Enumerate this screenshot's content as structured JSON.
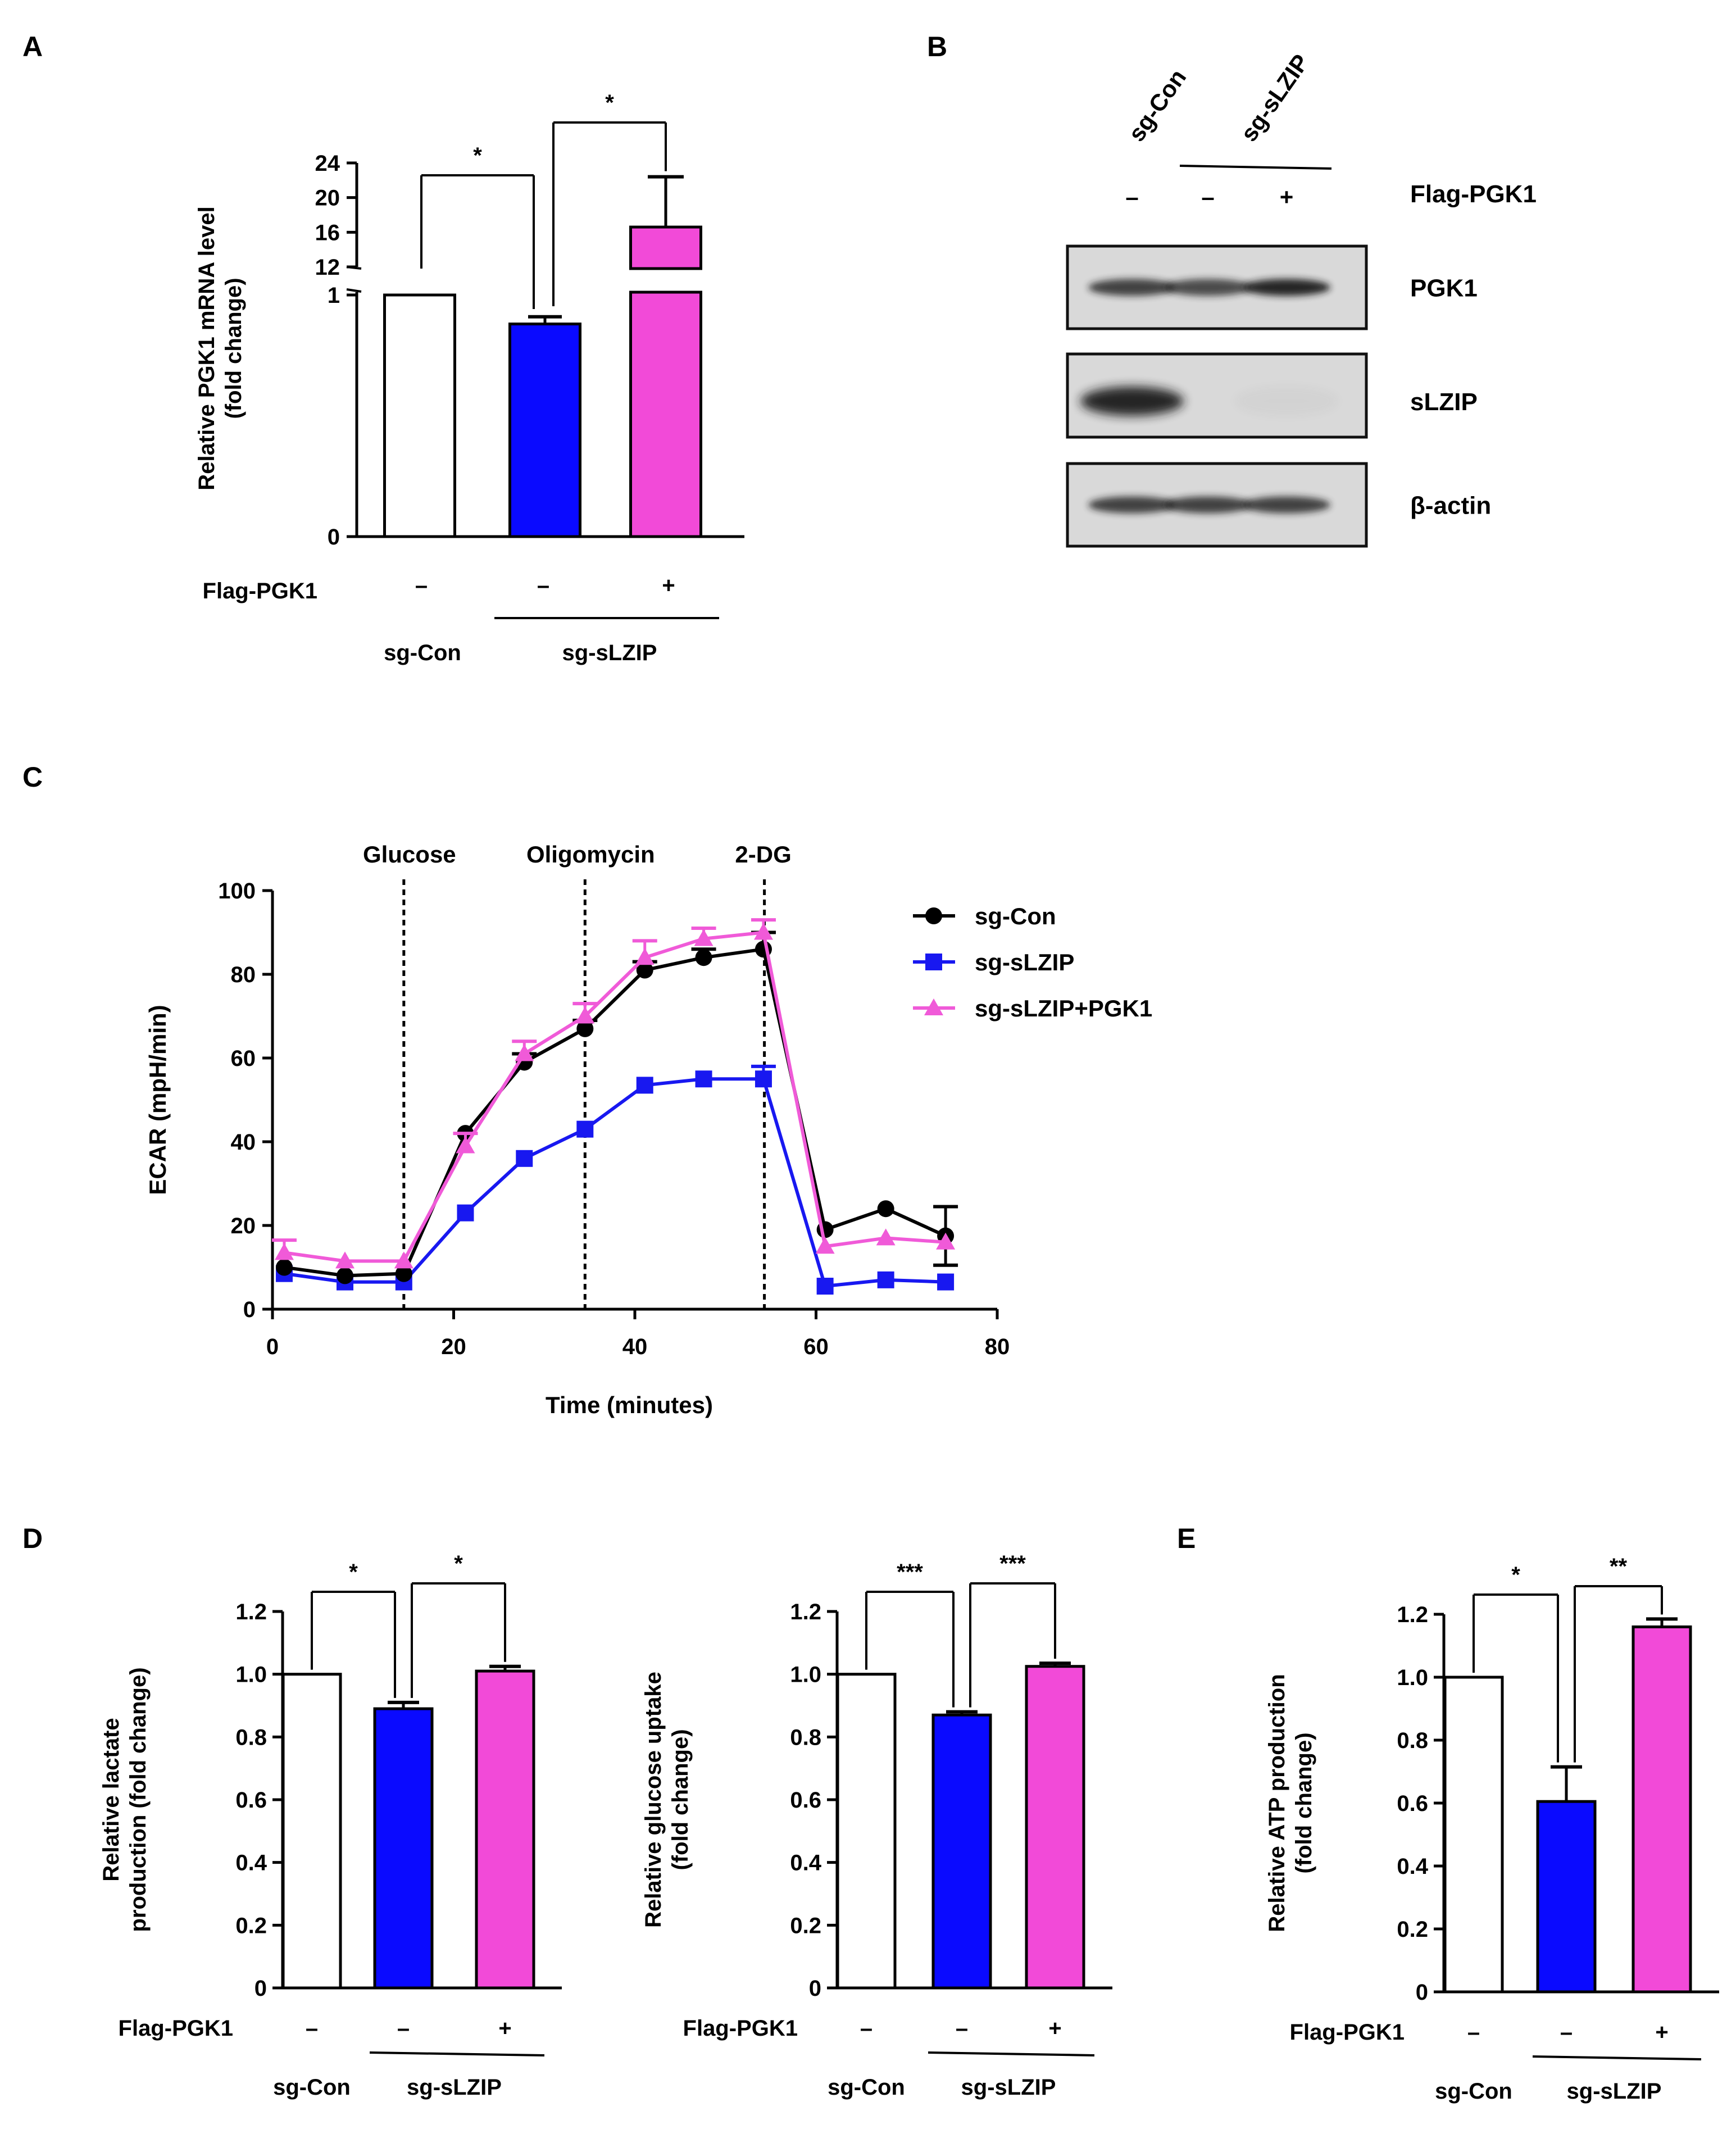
{
  "colors": {
    "sg_con": "#ffffff",
    "sg_slzip": "#0a0aff",
    "pgk1": "#f24ad8",
    "line_con": "#000000",
    "line_slzip": "#1818f0",
    "line_pgk1": "#f05ad8"
  },
  "panel_letters": [
    "A",
    "B",
    "C",
    "D",
    "E"
  ],
  "conditions": {
    "flag_label": "Flag-PGK1",
    "minus": "–",
    "plus": "+",
    "sg_con": "sg-Con",
    "sg_slzip": "sg-sLZIP"
  },
  "chart_data": [
    {
      "id": "A",
      "type": "bar",
      "ylabel": "Relative  PGK1 mRNA level (fold change)",
      "y_axis": "broken",
      "yticks_lower": [
        "0",
        "1"
      ],
      "yticks_upper": [
        "12",
        "16",
        "20",
        "24"
      ],
      "ylim_upper": [
        12,
        24
      ],
      "categories": [
        "sg-Con",
        "sg-sLZIP",
        "sg-sLZIP + Flag-PGK1"
      ],
      "flag": [
        "–",
        "–",
        "+"
      ],
      "values": [
        1.0,
        0.88,
        16.6
      ],
      "errors": [
        0,
        0.03,
        5.8
      ],
      "significance": [
        {
          "from": 0,
          "to": 1,
          "label": "*"
        },
        {
          "from": 1,
          "to": 2,
          "label": "*"
        }
      ]
    },
    {
      "id": "B",
      "type": "table",
      "title": "Western blot",
      "lanes": [
        "sg-Con",
        "sg-sLZIP",
        "sg-sLZIP"
      ],
      "flag": [
        "–",
        "–",
        "+"
      ],
      "rows": [
        "PGK1",
        "sLZIP",
        "β-actin"
      ],
      "intensity": [
        [
          0.8,
          0.75,
          0.95
        ],
        [
          0.95,
          0.0,
          0.03
        ],
        [
          0.8,
          0.8,
          0.8
        ]
      ]
    },
    {
      "id": "C",
      "type": "line",
      "xlabel": "Time (minutes)",
      "ylabel": "ECAR (mpH/min)",
      "xlim": [
        0,
        80
      ],
      "ylim": [
        0,
        100
      ],
      "xticks": [
        "0",
        "20",
        "40",
        "60",
        "80"
      ],
      "yticks": [
        "0",
        "20",
        "40",
        "60",
        "80",
        "100"
      ],
      "injections": [
        {
          "label": "Glucose",
          "x": 14.5
        },
        {
          "label": "Oligomycin",
          "x": 34.5
        },
        {
          "label": "2-DG",
          "x": 54.3
        }
      ],
      "x": [
        1.3,
        8,
        14.5,
        21.3,
        27.8,
        34.5,
        41.1,
        47.6,
        54.2,
        61,
        67.7,
        74.3
      ],
      "series": [
        {
          "name": "sg-Con",
          "marker": "circle",
          "values": [
            10,
            8,
            8.5,
            42,
            59,
            67,
            81,
            84,
            86,
            19,
            24,
            17.5
          ],
          "errors": [
            0,
            0,
            0,
            0,
            2,
            2,
            2,
            2,
            4,
            0,
            0,
            7
          ]
        },
        {
          "name": "sg-sLZIP",
          "marker": "square",
          "values": [
            8.5,
            6.5,
            6.5,
            23,
            36,
            43,
            53.5,
            55,
            55,
            5.5,
            7,
            6.5
          ],
          "errors": [
            0,
            0,
            0,
            0,
            0,
            0,
            0,
            0,
            3,
            0,
            0,
            0
          ]
        },
        {
          "name": "sg-sLZIP+PGK1",
          "marker": "triangle",
          "values": [
            13.5,
            11.5,
            11.5,
            39,
            61,
            70,
            84,
            88.5,
            90,
            15,
            17,
            16
          ],
          "errors": [
            3,
            0,
            0,
            3,
            3,
            3,
            4,
            2.5,
            3,
            0,
            0,
            0
          ]
        }
      ]
    },
    {
      "id": "D1",
      "type": "bar",
      "ylabel": "Relative lactate production (fold change)",
      "ylim": [
        0,
        1.2
      ],
      "yticks": [
        "0",
        "0.2",
        "0.4",
        "0.6",
        "0.8",
        "1.0",
        "1.2"
      ],
      "categories": [
        "sg-Con",
        "sg-sLZIP",
        "sg-sLZIP + Flag-PGK1"
      ],
      "flag": [
        "–",
        "–",
        "+"
      ],
      "values": [
        1.0,
        0.89,
        1.01
      ],
      "errors": [
        0,
        0.02,
        0.015
      ],
      "significance": [
        {
          "from": 0,
          "to": 1,
          "label": "*"
        },
        {
          "from": 1,
          "to": 2,
          "label": "*"
        }
      ]
    },
    {
      "id": "D2",
      "type": "bar",
      "ylabel": "Relative  glucose uptake (fold change)",
      "ylim": [
        0,
        1.2
      ],
      "yticks": [
        "0",
        "0.2",
        "0.4",
        "0.6",
        "0.8",
        "1.0",
        "1.2"
      ],
      "categories": [
        "sg-Con",
        "sg-sLZIP",
        "sg-sLZIP + Flag-PGK1"
      ],
      "flag": [
        "–",
        "–",
        "+"
      ],
      "values": [
        1.0,
        0.87,
        1.025
      ],
      "errors": [
        0,
        0.01,
        0.01
      ],
      "significance": [
        {
          "from": 0,
          "to": 1,
          "label": "***"
        },
        {
          "from": 1,
          "to": 2,
          "label": "***"
        }
      ]
    },
    {
      "id": "E",
      "type": "bar",
      "ylabel": "Relative  ATP production (fold change)",
      "ylim": [
        0,
        1.2
      ],
      "yticks": [
        "0",
        "0.2",
        "0.4",
        "0.6",
        "0.8",
        "1.0",
        "1.2"
      ],
      "categories": [
        "sg-Con",
        "sg-sLZIP",
        "sg-sLZIP + Flag-PGK1"
      ],
      "flag": [
        "–",
        "–",
        "+"
      ],
      "values": [
        1.0,
        0.605,
        1.16
      ],
      "errors": [
        0,
        0.11,
        0.025
      ],
      "significance": [
        {
          "from": 0,
          "to": 1,
          "label": "*"
        },
        {
          "from": 1,
          "to": 2,
          "label": "**"
        }
      ]
    }
  ]
}
